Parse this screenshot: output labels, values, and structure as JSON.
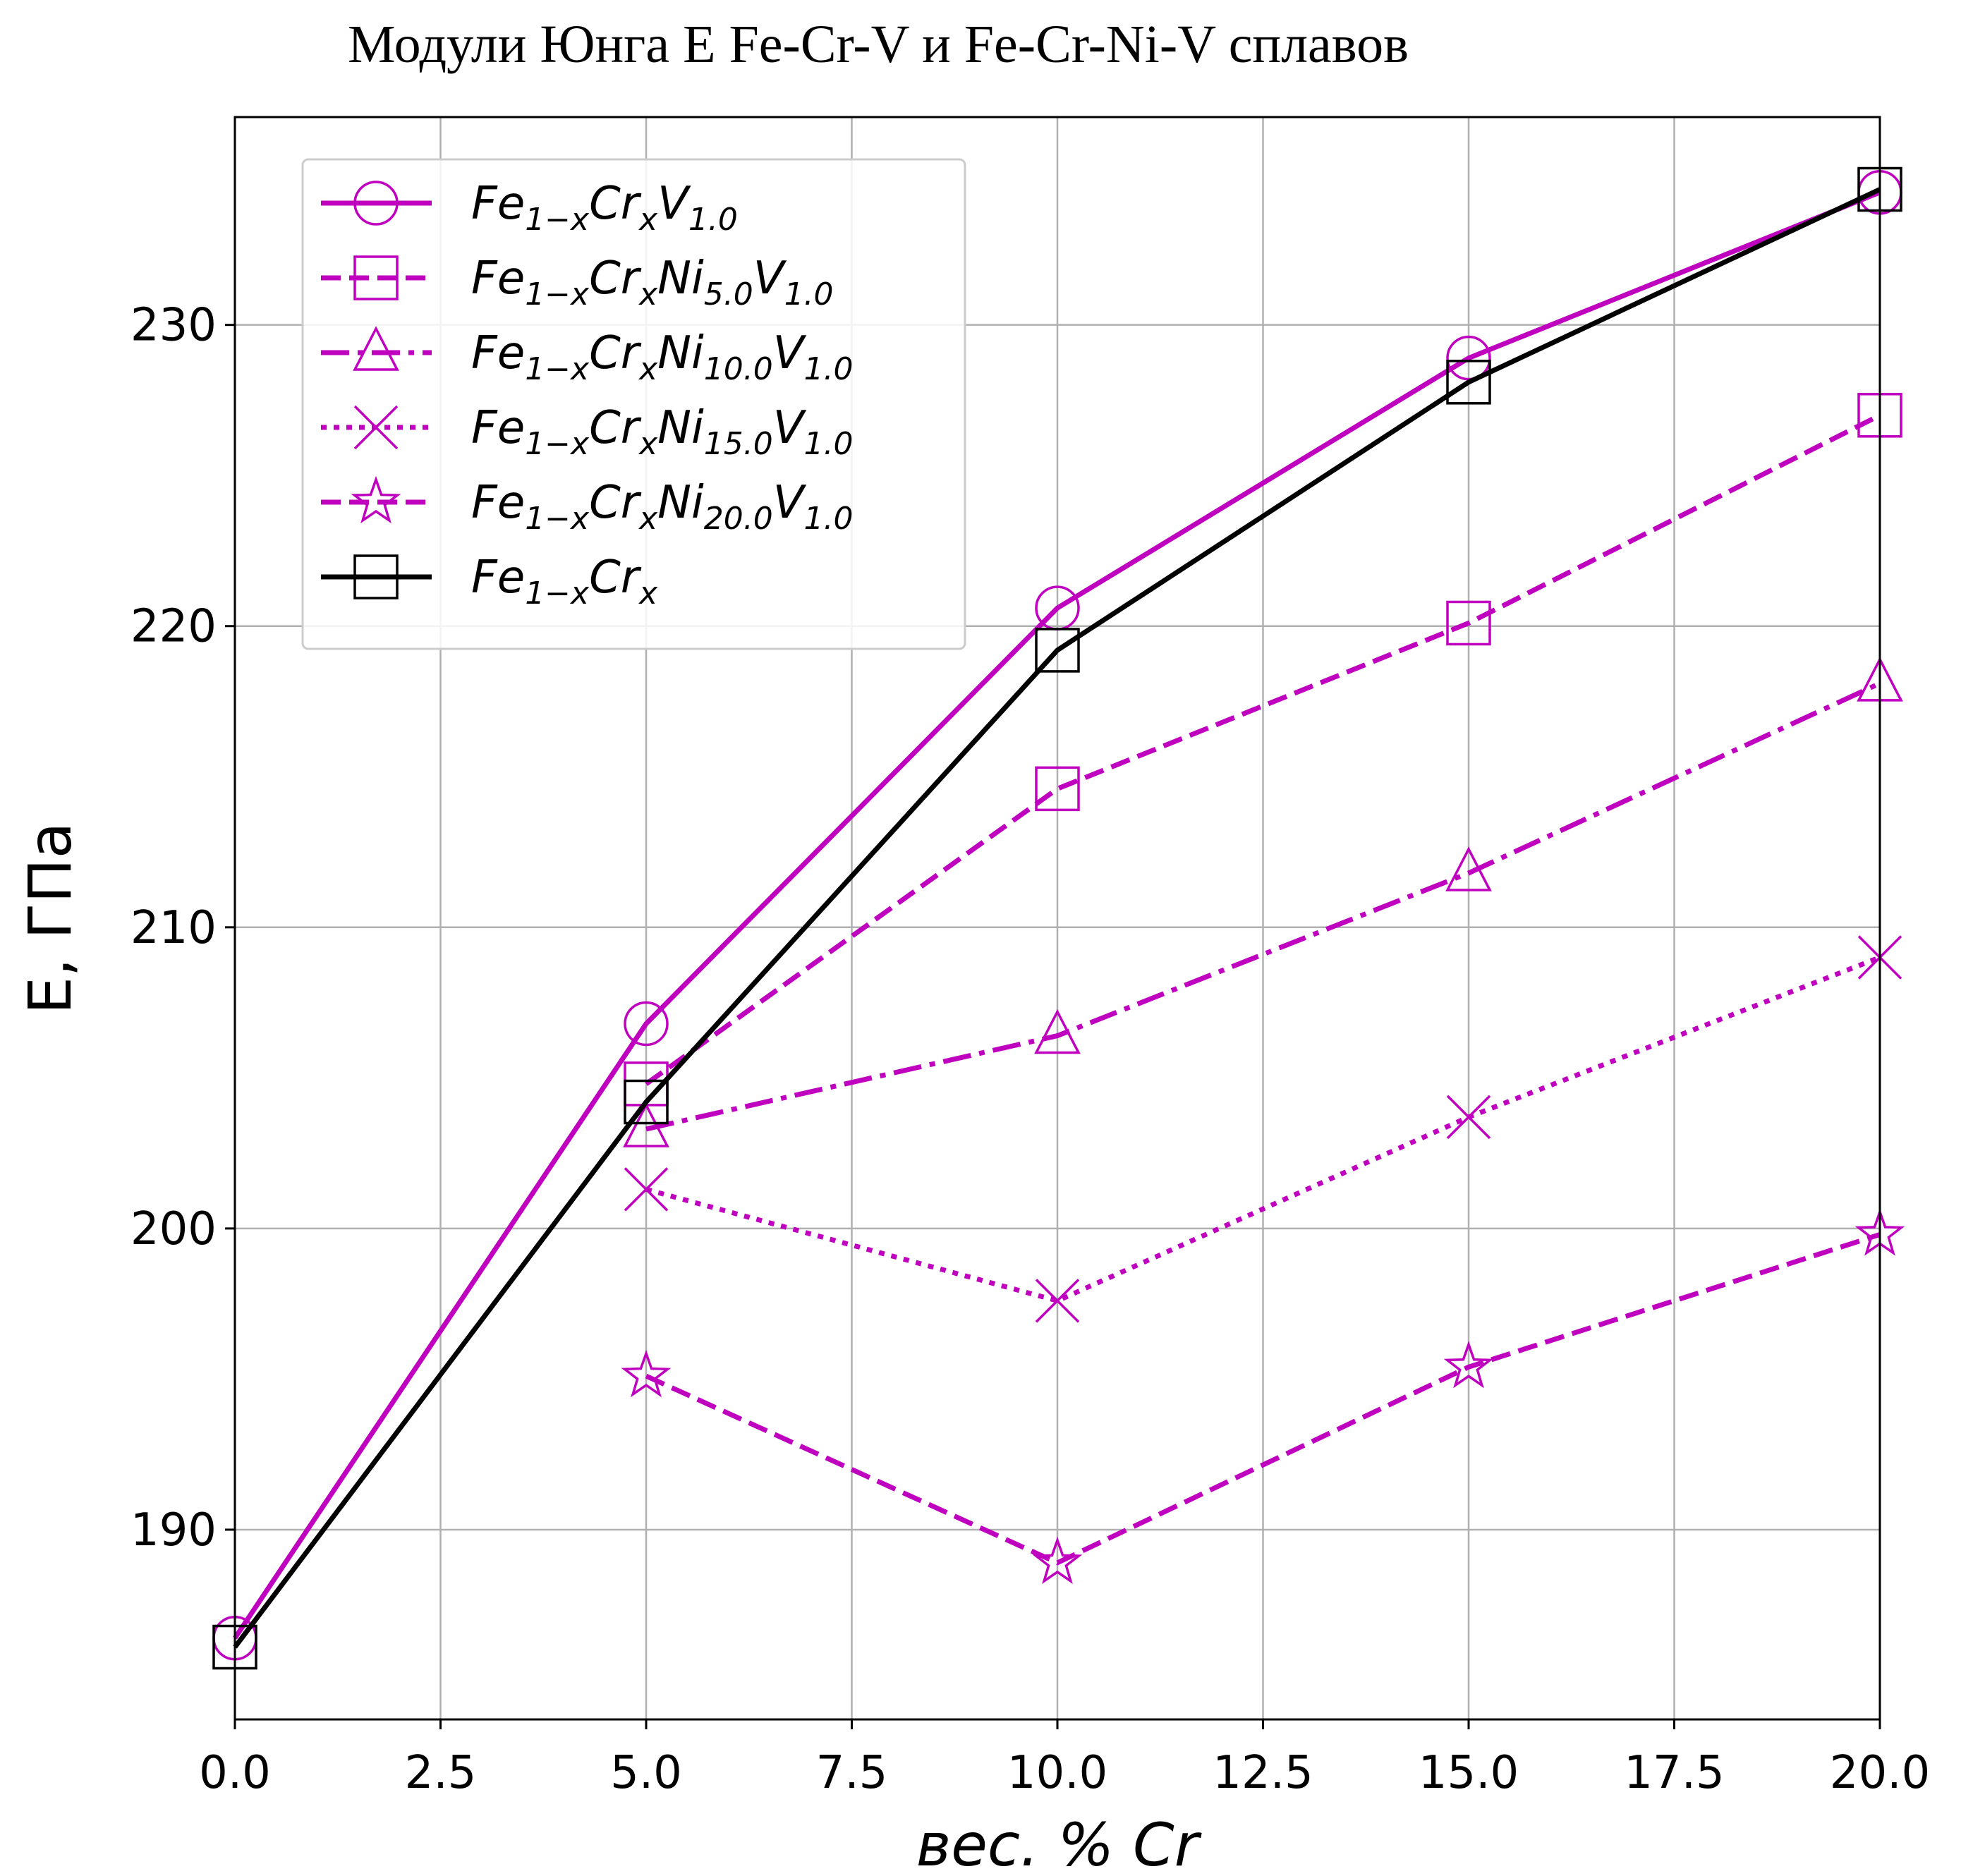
{
  "chart_data": {
    "type": "line",
    "title": "Модули Юнга E Fe-Cr-V и Fe-Cr-Ni-V сплавов",
    "xlabel": "вес. % Cr",
    "ylabel": "E, ГПа",
    "xlim": [
      0,
      20
    ],
    "ylim": [
      183.7,
      236.9
    ],
    "xticks": [
      "0.0",
      "2.5",
      "5.0",
      "7.5",
      "10.0",
      "12.5",
      "15.0",
      "17.5",
      "20.0"
    ],
    "yticks": [
      "190",
      "200",
      "210",
      "220",
      "230"
    ],
    "grid": true,
    "legend_position": "top-left",
    "series": [
      {
        "name": "Fe1-xCrxV1.0",
        "label_base": "Fe",
        "label_parts": [
          [
            "Fe",
            ""
          ],
          [
            "1−x",
            "sub"
          ],
          [
            "Cr",
            ""
          ],
          [
            "x",
            "sub"
          ],
          [
            "V",
            ""
          ],
          [
            "1.0",
            "sub"
          ]
        ],
        "color": "#bf00bf",
        "dash": "solid",
        "marker": "circle",
        "x": [
          0,
          5,
          10,
          15,
          20
        ],
        "y": [
          186.4,
          206.8,
          220.6,
          228.9,
          234.4
        ]
      },
      {
        "name": "Fe1-xCrxNi5.0V1.0",
        "label_parts": [
          [
            "Fe",
            ""
          ],
          [
            "1−x",
            "sub"
          ],
          [
            "Cr",
            ""
          ],
          [
            "x",
            "sub"
          ],
          [
            "Ni",
            ""
          ],
          [
            "5.0",
            "sub"
          ],
          [
            "V",
            ""
          ],
          [
            "1.0",
            "sub"
          ]
        ],
        "color": "#bf00bf",
        "dash": "dashed",
        "marker": "square",
        "x": [
          5,
          10,
          15,
          20
        ],
        "y": [
          204.8,
          214.6,
          220.1,
          227.0
        ]
      },
      {
        "name": "Fe1-xCrxNi10.0V1.0",
        "label_parts": [
          [
            "Fe",
            ""
          ],
          [
            "1−x",
            "sub"
          ],
          [
            "Cr",
            ""
          ],
          [
            "x",
            "sub"
          ],
          [
            "Ni",
            ""
          ],
          [
            "10.0",
            "sub"
          ],
          [
            "V",
            ""
          ],
          [
            "1.0",
            "sub"
          ]
        ],
        "color": "#bf00bf",
        "dash": "dashdot",
        "marker": "triangle",
        "x": [
          5,
          10,
          15,
          20
        ],
        "y": [
          203.3,
          206.4,
          211.8,
          218.1
        ]
      },
      {
        "name": "Fe1-xCrxNi15.0V1.0",
        "label_parts": [
          [
            "Fe",
            ""
          ],
          [
            "1−x",
            "sub"
          ],
          [
            "Cr",
            ""
          ],
          [
            "x",
            "sub"
          ],
          [
            "Ni",
            ""
          ],
          [
            "15.0",
            "sub"
          ],
          [
            "V",
            ""
          ],
          [
            "1.0",
            "sub"
          ]
        ],
        "color": "#bf00bf",
        "dash": "dotted",
        "marker": "x",
        "x": [
          5,
          10,
          15,
          20
        ],
        "y": [
          201.3,
          197.6,
          203.7,
          209.0
        ]
      },
      {
        "name": "Fe1-xCrxNi20.0V1.0",
        "label_parts": [
          [
            "Fe",
            ""
          ],
          [
            "1−x",
            "sub"
          ],
          [
            "Cr",
            ""
          ],
          [
            "x",
            "sub"
          ],
          [
            "Ni",
            ""
          ],
          [
            "20.0",
            "sub"
          ],
          [
            "V",
            ""
          ],
          [
            "1.0",
            "sub"
          ]
        ],
        "color": "#bf00bf",
        "dash": "dashed",
        "marker": "star",
        "x": [
          5,
          10,
          15,
          20
        ],
        "y": [
          195.1,
          188.9,
          195.4,
          199.8
        ]
      },
      {
        "name": "Fe1-xCrx",
        "label_parts": [
          [
            "Fe",
            ""
          ],
          [
            "1−x",
            "sub"
          ],
          [
            "Cr",
            ""
          ],
          [
            "x",
            "sub"
          ]
        ],
        "color": "#000000",
        "dash": "solid",
        "marker": "square",
        "x": [
          0,
          5,
          10,
          15,
          20
        ],
        "y": [
          186.1,
          204.2,
          219.2,
          228.1,
          234.5
        ]
      }
    ]
  }
}
